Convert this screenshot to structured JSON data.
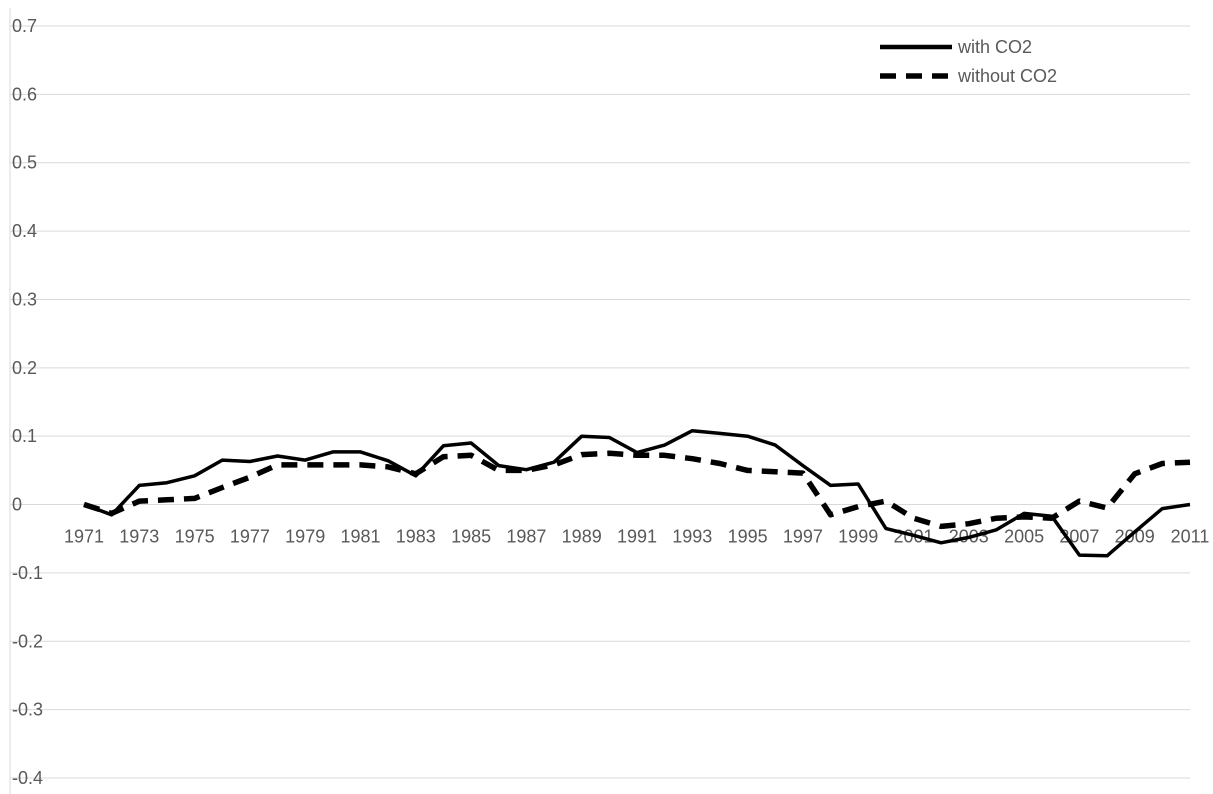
{
  "chart_data": {
    "type": "line",
    "title": "",
    "xlabel": "",
    "ylabel": "",
    "ylim": [
      -0.4,
      0.7
    ],
    "y_ticks": [
      "0.7",
      "0.6",
      "0.5",
      "0.4",
      "0.3",
      "0.2",
      "0.1",
      "0",
      "-0.1",
      "-0.2",
      "-0.3",
      "-0.4"
    ],
    "y_tick_values": [
      0.7,
      0.6,
      0.5,
      0.4,
      0.3,
      0.2,
      0.1,
      0,
      -0.1,
      -0.2,
      -0.3,
      -0.4
    ],
    "x_tick_labels": [
      "1971",
      "1973",
      "1975",
      "1977",
      "1979",
      "1981",
      "1983",
      "1985",
      "1987",
      "1989",
      "1991",
      "1993",
      "1995",
      "1997",
      "1999",
      "2001",
      "2003",
      "2005",
      "2007",
      "2009",
      "2011"
    ],
    "x": [
      1971,
      1972,
      1973,
      1974,
      1975,
      1976,
      1977,
      1978,
      1979,
      1980,
      1981,
      1982,
      1983,
      1984,
      1985,
      1986,
      1987,
      1988,
      1989,
      1990,
      1991,
      1992,
      1993,
      1994,
      1995,
      1996,
      1997,
      1998,
      1999,
      2000,
      2001,
      2002,
      2003,
      2004,
      2005,
      2006,
      2007,
      2008,
      2009,
      2010,
      2011
    ],
    "grid": true,
    "legend_position": "top-right",
    "series": [
      {
        "name": "with CO2",
        "style": "solid",
        "color": "#000000",
        "values": [
          0.0,
          -0.015,
          0.028,
          0.032,
          0.042,
          0.065,
          0.063,
          0.071,
          0.065,
          0.077,
          0.077,
          0.064,
          0.042,
          0.086,
          0.09,
          0.057,
          0.051,
          0.062,
          0.1,
          0.098,
          0.076,
          0.087,
          0.108,
          0.104,
          0.1,
          0.087,
          0.057,
          0.028,
          0.03,
          -0.035,
          -0.045,
          -0.056,
          -0.048,
          -0.037,
          -0.013,
          -0.017,
          -0.074,
          -0.075,
          -0.04,
          -0.006,
          0.0
        ]
      },
      {
        "name": "without CO2",
        "style": "dashed",
        "color": "#000000",
        "values": [
          0.0,
          -0.013,
          0.005,
          0.007,
          0.009,
          0.025,
          0.04,
          0.058,
          0.058,
          0.058,
          0.058,
          0.055,
          0.045,
          0.07,
          0.072,
          0.05,
          0.05,
          0.058,
          0.073,
          0.075,
          0.072,
          0.072,
          0.067,
          0.06,
          0.05,
          0.048,
          0.046,
          -0.015,
          -0.003,
          0.005,
          -0.02,
          -0.032,
          -0.028,
          -0.02,
          -0.018,
          -0.02,
          0.005,
          -0.005,
          0.045,
          0.06,
          0.062
        ]
      }
    ]
  }
}
